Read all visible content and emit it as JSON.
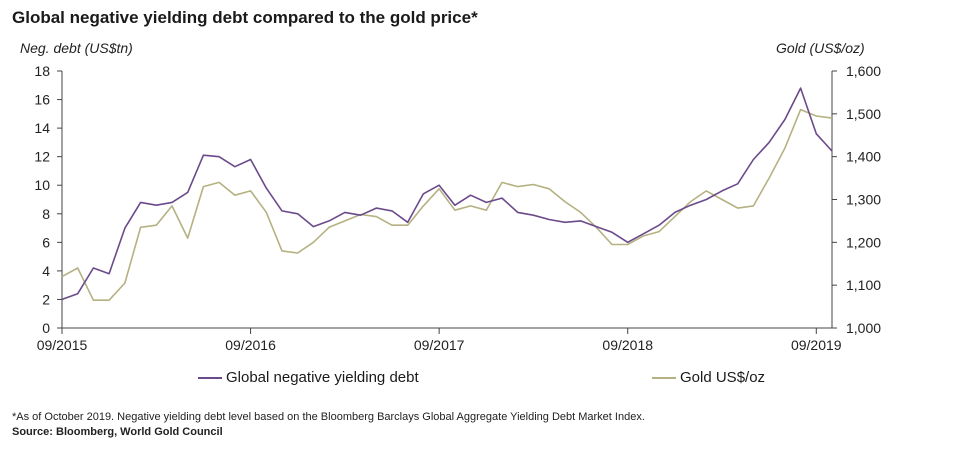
{
  "title": "Global negative yielding debt compared to the gold price*",
  "footnote": "*As of October 2019. Negative yielding debt level based on the Bloomberg Barclays Global Aggregate Yielding Debt Market Index.",
  "source": "Source: Bloomberg, World Gold Council",
  "colors": {
    "debt": "#6b4a8a",
    "gold": "#b5b182",
    "axis": "#444444",
    "text": "#222222"
  },
  "chart_data": {
    "type": "line",
    "ylabel": "Neg. debt (US$tn)",
    "y2label": "Gold (US$/oz)",
    "ylim": [
      0,
      18
    ],
    "y2lim": [
      1000,
      1600
    ],
    "yticks": [
      "0",
      "2",
      "4",
      "6",
      "8",
      "10",
      "12",
      "14",
      "16",
      "18"
    ],
    "y2ticks": [
      "1,000",
      "1,100",
      "1,200",
      "1,300",
      "1,400",
      "1,500",
      "1,600"
    ],
    "xlim": [
      "2015-09",
      "2019-10"
    ],
    "xticks": [
      "09/2015",
      "09/2016",
      "09/2017",
      "09/2018",
      "09/2019"
    ],
    "grid": false,
    "legend_position": "bottom",
    "series": [
      {
        "name": "Global negative yielding debt",
        "axis": "left",
        "x": [
          "2015-09",
          "2015-10",
          "2015-11",
          "2015-12",
          "2016-01",
          "2016-02",
          "2016-03",
          "2016-04",
          "2016-05",
          "2016-06",
          "2016-07",
          "2016-08",
          "2016-09",
          "2016-10",
          "2016-11",
          "2016-12",
          "2017-01",
          "2017-02",
          "2017-03",
          "2017-04",
          "2017-05",
          "2017-06",
          "2017-07",
          "2017-08",
          "2017-09",
          "2017-10",
          "2017-11",
          "2017-12",
          "2018-01",
          "2018-02",
          "2018-03",
          "2018-04",
          "2018-05",
          "2018-06",
          "2018-07",
          "2018-08",
          "2018-09",
          "2018-10",
          "2018-11",
          "2018-12",
          "2019-01",
          "2019-02",
          "2019-03",
          "2019-04",
          "2019-05",
          "2019-06",
          "2019-07",
          "2019-08",
          "2019-09",
          "2019-10"
        ],
        "values": [
          2.0,
          2.4,
          4.2,
          3.8,
          7.0,
          8.8,
          8.6,
          8.8,
          9.5,
          12.1,
          12.0,
          11.3,
          11.8,
          9.8,
          8.2,
          8.0,
          7.1,
          7.5,
          8.1,
          7.9,
          8.4,
          8.2,
          7.4,
          9.4,
          10.0,
          8.6,
          9.3,
          8.8,
          9.1,
          8.1,
          7.9,
          7.6,
          7.4,
          7.5,
          7.1,
          6.7,
          6.0,
          6.6,
          7.2,
          8.1,
          8.6,
          9.0,
          9.6,
          10.1,
          11.8,
          13.0,
          14.6,
          16.8,
          13.6,
          12.4
        ]
      },
      {
        "name": "Gold US$/oz",
        "axis": "right",
        "x": [
          "2015-09",
          "2015-10",
          "2015-11",
          "2015-12",
          "2016-01",
          "2016-02",
          "2016-03",
          "2016-04",
          "2016-05",
          "2016-06",
          "2016-07",
          "2016-08",
          "2016-09",
          "2016-10",
          "2016-11",
          "2016-12",
          "2017-01",
          "2017-02",
          "2017-03",
          "2017-04",
          "2017-05",
          "2017-06",
          "2017-07",
          "2017-08",
          "2017-09",
          "2017-10",
          "2017-11",
          "2017-12",
          "2018-01",
          "2018-02",
          "2018-03",
          "2018-04",
          "2018-05",
          "2018-06",
          "2018-07",
          "2018-08",
          "2018-09",
          "2018-10",
          "2018-11",
          "2018-12",
          "2019-01",
          "2019-02",
          "2019-03",
          "2019-04",
          "2019-05",
          "2019-06",
          "2019-07",
          "2019-08",
          "2019-09",
          "2019-10"
        ],
        "values": [
          1120,
          1140,
          1065,
          1065,
          1105,
          1235,
          1240,
          1285,
          1210,
          1330,
          1340,
          1310,
          1320,
          1270,
          1180,
          1175,
          1200,
          1235,
          1250,
          1265,
          1260,
          1240,
          1240,
          1285,
          1325,
          1275,
          1285,
          1275,
          1340,
          1330,
          1335,
          1325,
          1295,
          1270,
          1235,
          1195,
          1195,
          1215,
          1225,
          1260,
          1295,
          1320,
          1300,
          1280,
          1285,
          1350,
          1420,
          1510,
          1495,
          1490
        ]
      }
    ]
  }
}
